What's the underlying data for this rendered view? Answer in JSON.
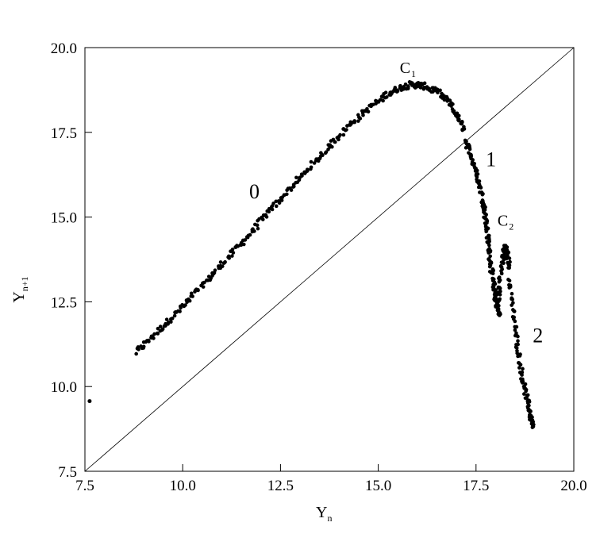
{
  "chart_data": {
    "type": "scatter",
    "title": "",
    "xlabel": {
      "main": "Y",
      "sub": "n"
    },
    "ylabel": {
      "main": "Y",
      "sub": "n+1"
    },
    "xlim": [
      7.5,
      20.0
    ],
    "ylim": [
      7.5,
      20.0
    ],
    "x_ticks": [
      "7.5",
      "10.0",
      "12.5",
      "15.0",
      "17.5",
      "20.0"
    ],
    "y_ticks": [
      "7.5",
      "10.0",
      "12.5",
      "15.0",
      "17.5",
      "20.0"
    ],
    "grid": false,
    "legend": "none",
    "reference_line": {
      "type": "identity",
      "from": [
        7.5,
        7.5
      ],
      "to": [
        20.0,
        20.0
      ]
    },
    "series": [
      {
        "branches": [
          {
            "x": [
              8.8,
              9.2,
              9.6,
              10.0,
              10.4,
              10.8,
              11.2,
              11.6,
              12.0,
              12.4,
              12.8,
              13.2,
              13.6,
              14.0,
              14.4,
              14.8,
              15.2,
              15.5,
              15.8,
              16.0,
              16.2,
              16.5,
              16.8,
              17.0,
              17.2
            ],
            "y": [
              11.0,
              11.45,
              11.9,
              12.35,
              12.85,
              13.35,
              13.85,
              14.35,
              14.9,
              15.4,
              15.9,
              16.4,
              16.9,
              17.4,
              17.85,
              18.25,
              18.6,
              18.8,
              18.9,
              18.9,
              18.85,
              18.7,
              18.4,
              18.0,
              17.6
            ]
          },
          {
            "x": [
              17.2,
              17.35,
              17.5,
              17.6,
              17.7,
              17.75,
              17.8,
              17.85,
              17.9,
              17.95,
              18.0,
              18.05,
              18.1
            ],
            "y": [
              17.3,
              16.9,
              16.4,
              15.9,
              15.4,
              14.9,
              14.4,
              13.9,
              13.4,
              13.0,
              12.6,
              12.3,
              12.1
            ]
          },
          {
            "x": [
              18.05,
              18.1,
              18.15,
              18.2,
              18.25,
              18.3,
              18.35
            ],
            "y": [
              12.4,
              12.9,
              13.5,
              14.0,
              14.1,
              13.9,
              13.5
            ]
          },
          {
            "x": [
              18.35,
              18.45,
              18.55,
              18.65,
              18.75,
              18.85,
              18.9,
              18.95
            ],
            "y": [
              13.2,
              12.2,
              11.3,
              10.5,
              9.9,
              9.4,
              9.1,
              8.85
            ]
          }
        ],
        "outliers": [
          {
            "x": [
              7.62
            ],
            "y": [
              9.57
            ]
          }
        ]
      }
    ],
    "annotations": [
      {
        "text": "C",
        "sub": "1",
        "x": 15.55,
        "y": 19.25
      },
      {
        "text": "0",
        "sub": "",
        "x": 11.7,
        "y": 15.55
      },
      {
        "text": "1",
        "sub": "",
        "x": 17.75,
        "y": 16.5
      },
      {
        "text": "C",
        "sub": "2",
        "x": 18.05,
        "y": 14.75
      },
      {
        "text": "2",
        "sub": "",
        "x": 18.95,
        "y": 11.3
      }
    ]
  }
}
